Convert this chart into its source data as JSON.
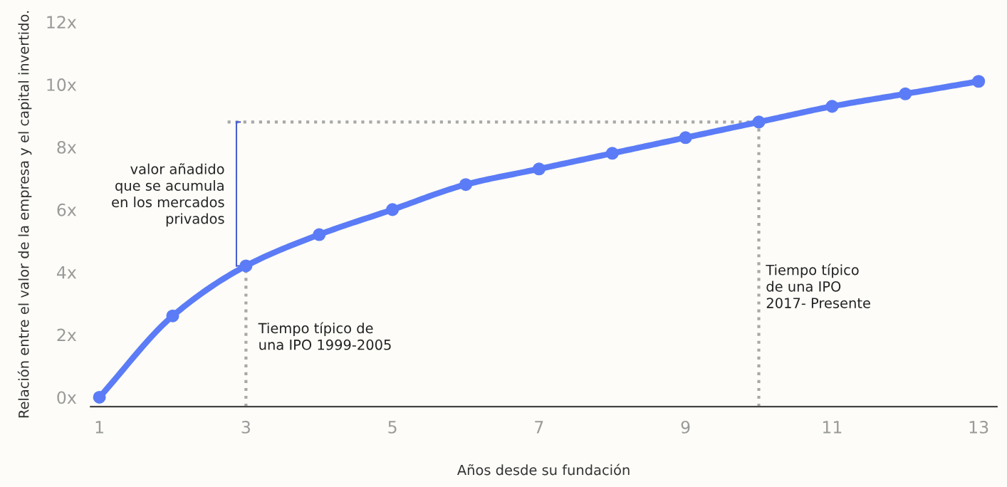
{
  "chart_data": {
    "type": "line",
    "xlabel": "Años desde su fundación",
    "ylabel": "Relación entre el valor de la empresa y el capital invertido.",
    "x": [
      1,
      2,
      3,
      4,
      5,
      6,
      7,
      8,
      9,
      10,
      11,
      12,
      13
    ],
    "series": [
      {
        "color": "#5b7cf6",
        "values": [
          0,
          2.6,
          4.2,
          5.2,
          6.0,
          6.8,
          7.3,
          7.8,
          8.3,
          8.8,
          9.3,
          9.7,
          10.1
        ]
      }
    ],
    "marker": "circle",
    "line_style": "solid",
    "grid": false,
    "xlim": [
      0.88,
      13.25
    ],
    "ylim": [
      -0.3,
      12
    ],
    "xticks": [
      1,
      3,
      5,
      7,
      9,
      11,
      13
    ],
    "yticks": [
      {
        "value": 0,
        "label": "0x"
      },
      {
        "value": 2,
        "label": "2x"
      },
      {
        "value": 4,
        "label": "4x"
      },
      {
        "value": 6,
        "label": "6x"
      },
      {
        "value": 8,
        "label": "8x"
      },
      {
        "value": 10,
        "label": "10x"
      },
      {
        "value": 12,
        "label": "12x"
      }
    ],
    "ref_lines": [
      {
        "axis": "x",
        "value": 3,
        "color": "#a8a8a8",
        "line_style": "dotted"
      },
      {
        "axis": "x",
        "value": 10,
        "color": "#a8a8a8",
        "line_style": "dotted"
      },
      {
        "axis": "y",
        "value": 8.8,
        "color": "#a8a8a8",
        "line_style": "dotted"
      }
    ],
    "annotations": [
      "valor añadido\nque se acumula\nen los mercados\nprivados",
      "Tiempo típico de\nuna IPO 1999-2005",
      "Tiempo típico\nde una IPO\n2017- Presente"
    ]
  }
}
